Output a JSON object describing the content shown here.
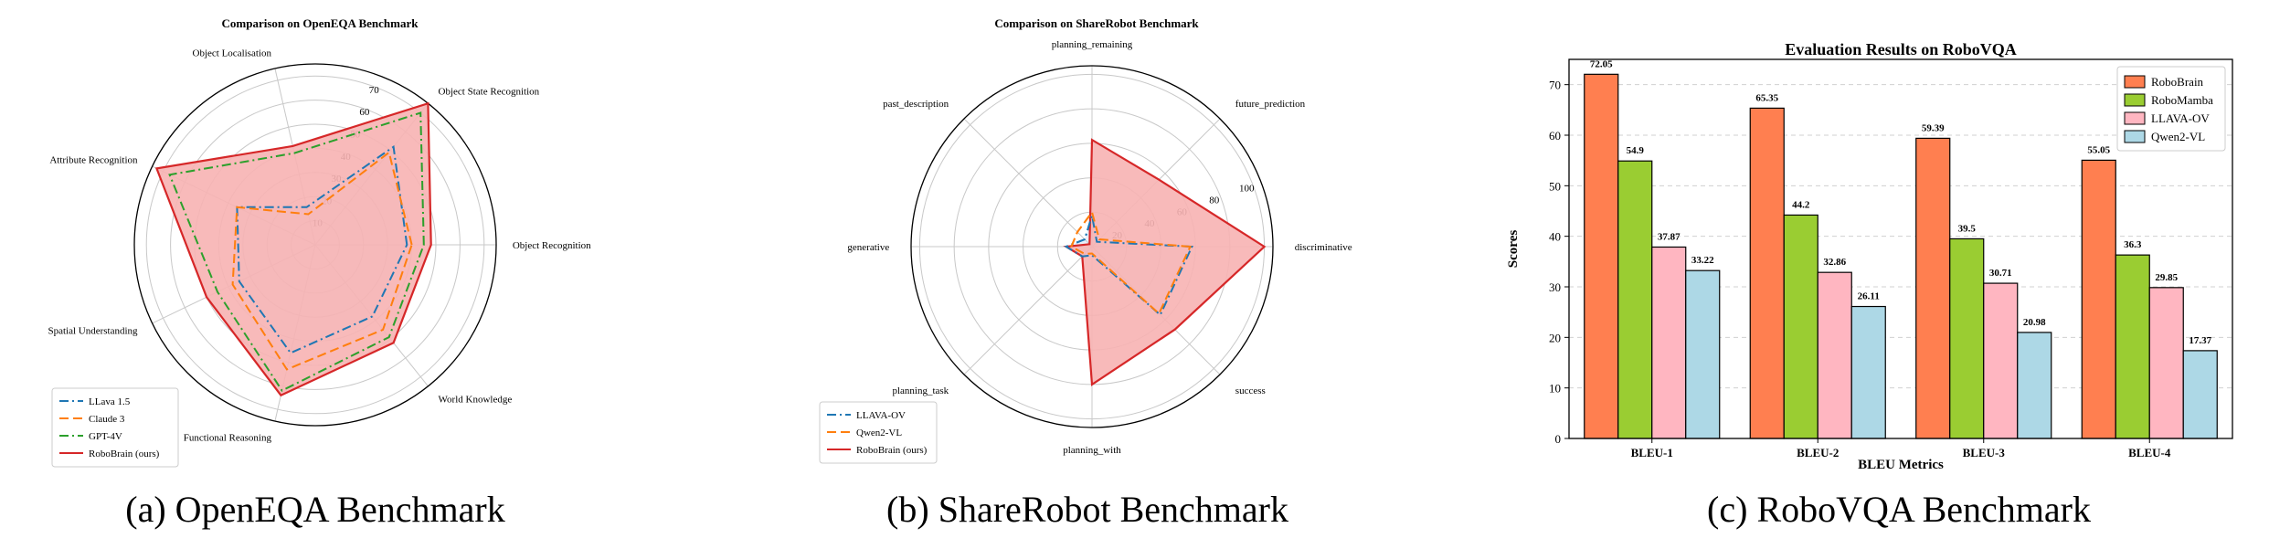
{
  "captions": {
    "a": "(a) OpenEQA Benchmark",
    "b": "(b) ShareRobot Benchmark",
    "c": "(c) RoboVQA Benchmark"
  },
  "colors": {
    "blue": "#1f77b4",
    "orange": "#ff7f0e",
    "green": "#2ca02c",
    "red": "#d62728",
    "red_fill": "#f7b3b3",
    "bar_robobrain": "#ff7f50",
    "bar_robomamba": "#9acd32",
    "bar_llava": "#ffb6c1",
    "bar_qwen": "#add8e6"
  },
  "chart_data": [
    {
      "type": "radar",
      "title": "Comparison on OpenEQA Benchmark",
      "axes": [
        "Object Recognition",
        "Object Localisation",
        "Object State Recognition",
        "Attribute Recognition",
        "Spatial Understanding",
        "Functional Reasoning",
        "World Knowledge"
      ],
      "axis_angles_deg": [
        0,
        102.857,
        51.429,
        154.286,
        205.714,
        257.143,
        308.571
      ],
      "radial_ticks": [
        10,
        20,
        30,
        40,
        50,
        60,
        70
      ],
      "rmax": 75,
      "series": [
        {
          "name": "LLava 1.5",
          "color": "blue",
          "style": "dashdot",
          "values": [
            38,
            16,
            52,
            36,
            35,
            46,
            38
          ]
        },
        {
          "name": "Claude 3",
          "color": "orange",
          "style": "dashed",
          "values": [
            40,
            13,
            49,
            36,
            38,
            53,
            45
          ]
        },
        {
          "name": "GPT-4V",
          "color": "green",
          "style": "dashdot",
          "values": [
            45,
            39,
            70,
            67,
            45,
            62,
            49
          ]
        },
        {
          "name": "RoboBrain (ours)",
          "color": "red",
          "style": "solid",
          "values": [
            48,
            42,
            75,
            73,
            50,
            64,
            52
          ],
          "fill": true
        }
      ]
    },
    {
      "type": "radar",
      "title": "Comparison on ShareRobot Benchmark",
      "axes": [
        "discriminative",
        "future_prediction",
        "planning_remaining",
        "past_description",
        "generative",
        "planning_task",
        "planning_with",
        "success"
      ],
      "axis_angles_deg": [
        0,
        45,
        90,
        135,
        180,
        225,
        270,
        315
      ],
      "radial_ticks": [
        20,
        40,
        60,
        80,
        100
      ],
      "rmax": 105,
      "series": [
        {
          "name": "LLAVA-OV",
          "color": "blue",
          "style": "dashdot",
          "values": [
            58,
            4,
            18,
            6,
            15,
            8,
            5,
            56
          ]
        },
        {
          "name": "Qwen2-VL",
          "color": "orange",
          "style": "dashed",
          "values": [
            57,
            6,
            20,
            12,
            12,
            6,
            4,
            55
          ]
        },
        {
          "name": "RoboBrain (ours)",
          "color": "red",
          "style": "solid",
          "values": [
            100,
            55,
            62,
            2,
            15,
            8,
            80,
            68
          ],
          "fill": true
        }
      ]
    },
    {
      "type": "bar",
      "title": "Evaluation Results on RoboVQA",
      "xlabel": "BLEU Metrics",
      "ylabel": "Scores",
      "categories": [
        "BLEU-1",
        "BLEU-2",
        "BLEU-3",
        "BLEU-4"
      ],
      "ylim": [
        0,
        75
      ],
      "yticks": [
        0,
        10,
        20,
        30,
        40,
        50,
        60,
        70
      ],
      "grid": true,
      "legend_position": "top-right",
      "series": [
        {
          "name": "RoboBrain",
          "color": "bar_robobrain",
          "values": [
            72.05,
            65.35,
            59.39,
            55.05
          ]
        },
        {
          "name": "RoboMamba",
          "color": "bar_robomamba",
          "values": [
            54.9,
            44.2,
            39.5,
            36.3
          ]
        },
        {
          "name": "LLAVA-OV",
          "color": "bar_llava",
          "values": [
            37.87,
            32.86,
            30.71,
            29.85
          ]
        },
        {
          "name": "Qwen2-VL",
          "color": "bar_qwen",
          "values": [
            33.22,
            26.11,
            20.98,
            17.37
          ]
        }
      ]
    }
  ]
}
